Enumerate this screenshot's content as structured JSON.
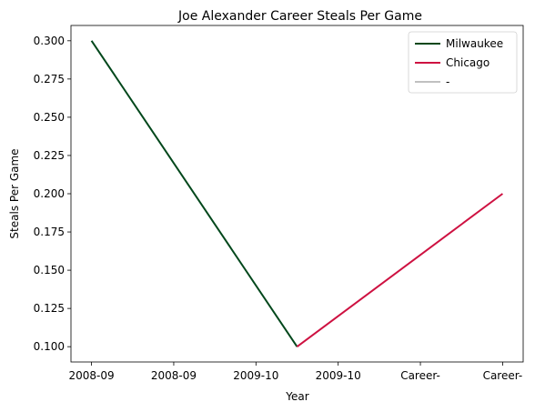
{
  "chart_data": {
    "type": "line",
    "title": "Joe Alexander Career Steals Per Game",
    "xlabel": "Year",
    "ylabel": "Steals Per Game",
    "categories": [
      "2008-09",
      "2008-09",
      "2009-10",
      "2009-10",
      "Career-",
      "Career-"
    ],
    "y_ticks": [
      0.1,
      0.125,
      0.15,
      0.175,
      0.2,
      0.225,
      0.25,
      0.275,
      0.3
    ],
    "ylim": [
      0.09,
      0.31
    ],
    "grid": false,
    "legend_position": "upper right",
    "series": [
      {
        "name": "Milwaukee",
        "color": "#00471b",
        "points": [
          [
            0,
            0.3
          ],
          [
            2.5,
            0.1
          ]
        ]
      },
      {
        "name": "Chicago",
        "color": "#ce1141",
        "points": [
          [
            2.5,
            0.1
          ],
          [
            5,
            0.2
          ]
        ]
      },
      {
        "name": "-",
        "color": "#c0c0c0",
        "points": []
      }
    ]
  }
}
